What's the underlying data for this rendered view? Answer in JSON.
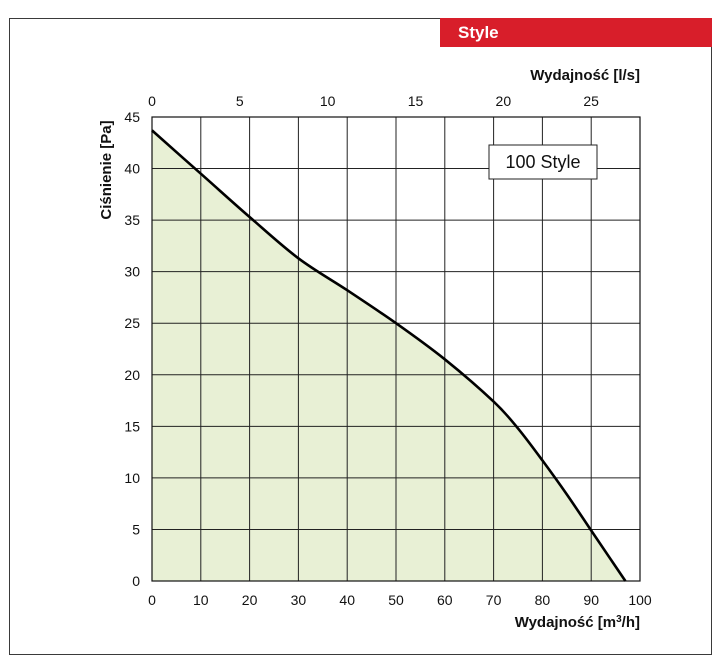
{
  "header": {
    "tag": "Style"
  },
  "chart_data": {
    "type": "area",
    "x_bottom": {
      "label_main": "Wydajność [m",
      "label_sup": "3",
      "label_end": "/h]",
      "min": 0,
      "max": 100,
      "ticks": [
        "0",
        "10",
        "20",
        "30",
        "40",
        "50",
        "60",
        "70",
        "80",
        "90",
        "100"
      ]
    },
    "x_top": {
      "label": "Wydajność [l/s]",
      "min": 0,
      "max": 27.78,
      "ticks": [
        "0",
        "5",
        "10",
        "15",
        "20",
        "25"
      ]
    },
    "y": {
      "label": "Ciśnienie [Pa]",
      "min": 0,
      "max": 45,
      "ticks": [
        "0",
        "5",
        "10",
        "15",
        "20",
        "25",
        "30",
        "35",
        "40",
        "45"
      ]
    },
    "grid": true,
    "fill_color": "#e8f0d5",
    "line_color": "#000000",
    "series": [
      {
        "name": "100 Style",
        "x": [
          0,
          10,
          20,
          30,
          40,
          50,
          60,
          70,
          75,
          80,
          85,
          90,
          94,
          97
        ],
        "y": [
          43.7,
          39.5,
          35.3,
          31.3,
          28.2,
          25.0,
          21.5,
          17.4,
          14.8,
          11.7,
          8.4,
          4.9,
          2.1,
          0
        ]
      }
    ],
    "legend": {
      "text": "100 Style",
      "placement": "top-right"
    }
  }
}
